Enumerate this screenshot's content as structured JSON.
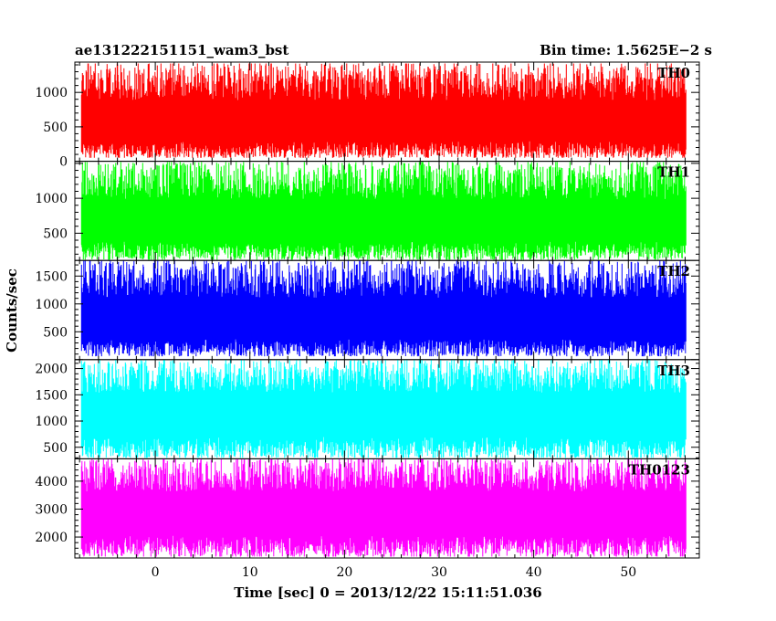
{
  "header": {
    "title": "ae131222151151_wam3_bst",
    "bin_time": "Bin time: 1.5625E−2 s"
  },
  "chart_data": {
    "type": "line",
    "title": "ae131222151151_wam3_bst",
    "xlabel": "Time [sec] 0 = 2013/12/22 15:11:51.036",
    "ylabel": "Counts/sec",
    "xlim": [
      -8.5,
      57.5
    ],
    "x_ticks": [
      0,
      10,
      20,
      30,
      40,
      50
    ],
    "data_x_range": [
      -7.8,
      56.1
    ],
    "grid": false,
    "panels": [
      {
        "name": "TH0",
        "color": "#ff0000",
        "ylim": [
          0,
          1440
        ],
        "y_ticks": [
          0,
          500,
          1000
        ],
        "mean": 600,
        "min": 50,
        "max": 1420
      },
      {
        "name": "TH1",
        "color": "#00ff00",
        "ylim": [
          110,
          1530
        ],
        "y_ticks": [
          500,
          1000
        ],
        "mean": 700,
        "min": 120,
        "max": 1520
      },
      {
        "name": "TH2",
        "color": "#0000ff",
        "ylim": [
          0,
          1780
        ],
        "y_ticks": [
          500,
          1000,
          1500
        ],
        "mean": 750,
        "min": 60,
        "max": 1780
      },
      {
        "name": "TH3",
        "color": "#00ffff",
        "ylim": [
          280,
          2170
        ],
        "y_ticks": [
          500,
          1000,
          1500,
          2000
        ],
        "mean": 1200,
        "min": 300,
        "max": 2170
      },
      {
        "name": "TH0123",
        "color": "#ff00ff",
        "ylim": [
          1250,
          4800
        ],
        "y_ticks": [
          2000,
          3000,
          4000
        ],
        "mean": 3000,
        "min": 1300,
        "max": 4800
      }
    ]
  }
}
